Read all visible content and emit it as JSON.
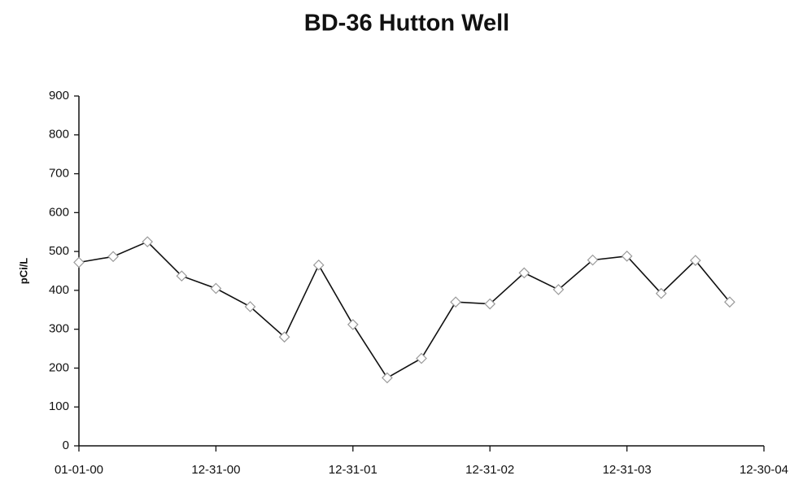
{
  "chart_data": {
    "type": "line",
    "title": "BD-36  Hutton Well",
    "y_label": "pCi/L",
    "categories": [
      "01-01-00",
      null,
      null,
      null,
      "12-31-00",
      null,
      null,
      null,
      "12-31-01",
      null,
      null,
      null,
      "12-31-02",
      null,
      null,
      null,
      "12-31-03",
      null,
      null,
      null,
      "12-30-04"
    ],
    "series": [
      {
        "name": "BD-36",
        "color": "#111111",
        "marker_color": "#9a9a9a",
        "values": [
          472,
          487,
          525,
          437,
          405,
          358,
          280,
          465,
          312,
          175,
          225,
          370,
          365,
          445,
          402,
          478,
          488,
          392,
          477,
          370,
          null
        ]
      }
    ],
    "ylim": [
      0,
      900
    ],
    "yticks": [
      0,
      100,
      200,
      300,
      400,
      500,
      600,
      700,
      800,
      900
    ],
    "grid": false
  }
}
